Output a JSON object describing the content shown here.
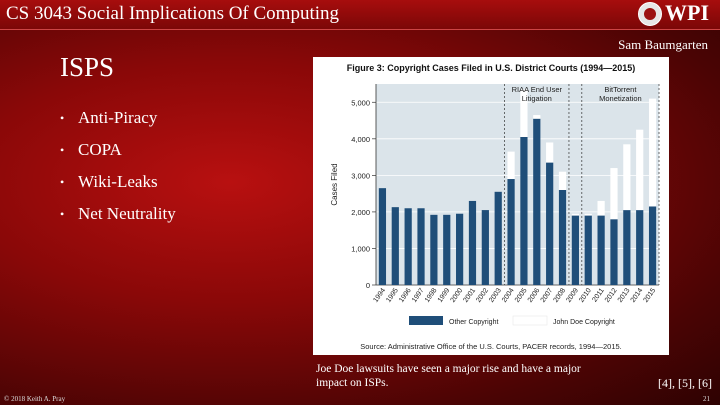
{
  "header": {
    "course_title": "CS 3043 Social Implications Of Computing",
    "logo_text": "WPI"
  },
  "author": "Sam Baumgarten",
  "slide_title": "ISPS",
  "bullets": [
    "Anti-Piracy",
    "COPA",
    "Wiki-Leaks",
    "Net Neutrality"
  ],
  "bullet_glyph": "•",
  "caption": "Joe Doe lawsuits have seen a major rise and have a major impact on ISPs.",
  "references": "[4], [5], [6]",
  "footer": {
    "copyright": "© 2018 Keith A. Pray",
    "page_number": "21"
  },
  "colors": {
    "bar_dark": "#1f4e79",
    "bar_light": "#ffffff",
    "plot_bg": "#dbe4ea"
  },
  "chart_data": {
    "type": "bar",
    "title": "Figure 3: Copyright Cases Filed in U.S. District Courts (1994—2015)",
    "ylabel": "Cases Filed",
    "xlabel": "",
    "ylim": [
      0,
      5500
    ],
    "yticks": [
      0,
      1000,
      2000,
      3000,
      4000,
      5000
    ],
    "ytick_labels": [
      "0",
      "1,000",
      "2,000",
      "3,000",
      "4,000",
      "5,000"
    ],
    "categories": [
      "1994",
      "1995",
      "1996",
      "1997",
      "1998",
      "1999",
      "2000",
      "2001",
      "2002",
      "2003",
      "2004",
      "2005",
      "2006",
      "2007",
      "2008",
      "2009",
      "2010",
      "2011",
      "2012",
      "2013",
      "2014",
      "2015"
    ],
    "stacked": true,
    "series": [
      {
        "name": "Other Copyright",
        "values": [
          2650,
          2130,
          2100,
          2100,
          1920,
          1920,
          1950,
          2300,
          2050,
          2550,
          2900,
          4050,
          4550,
          3350,
          2600,
          1900,
          1900,
          1900,
          1800,
          2050,
          2050,
          2150
        ]
      },
      {
        "name": "John Doe Copyright",
        "values": [
          0,
          0,
          0,
          0,
          0,
          0,
          0,
          0,
          0,
          0,
          750,
          1300,
          100,
          550,
          500,
          50,
          50,
          400,
          1400,
          1800,
          2200,
          2950
        ]
      }
    ],
    "annotations": [
      {
        "text_lines": [
          "RIAA End User",
          "Litigation"
        ],
        "start": "2004",
        "end": "2008"
      },
      {
        "text_lines": [
          "BitTorrent",
          "Monetization"
        ],
        "start": "2010",
        "end": "2015"
      }
    ],
    "source": "Source: Administrative Office of the U.S. Courts, PACER records, 1994—2015."
  }
}
